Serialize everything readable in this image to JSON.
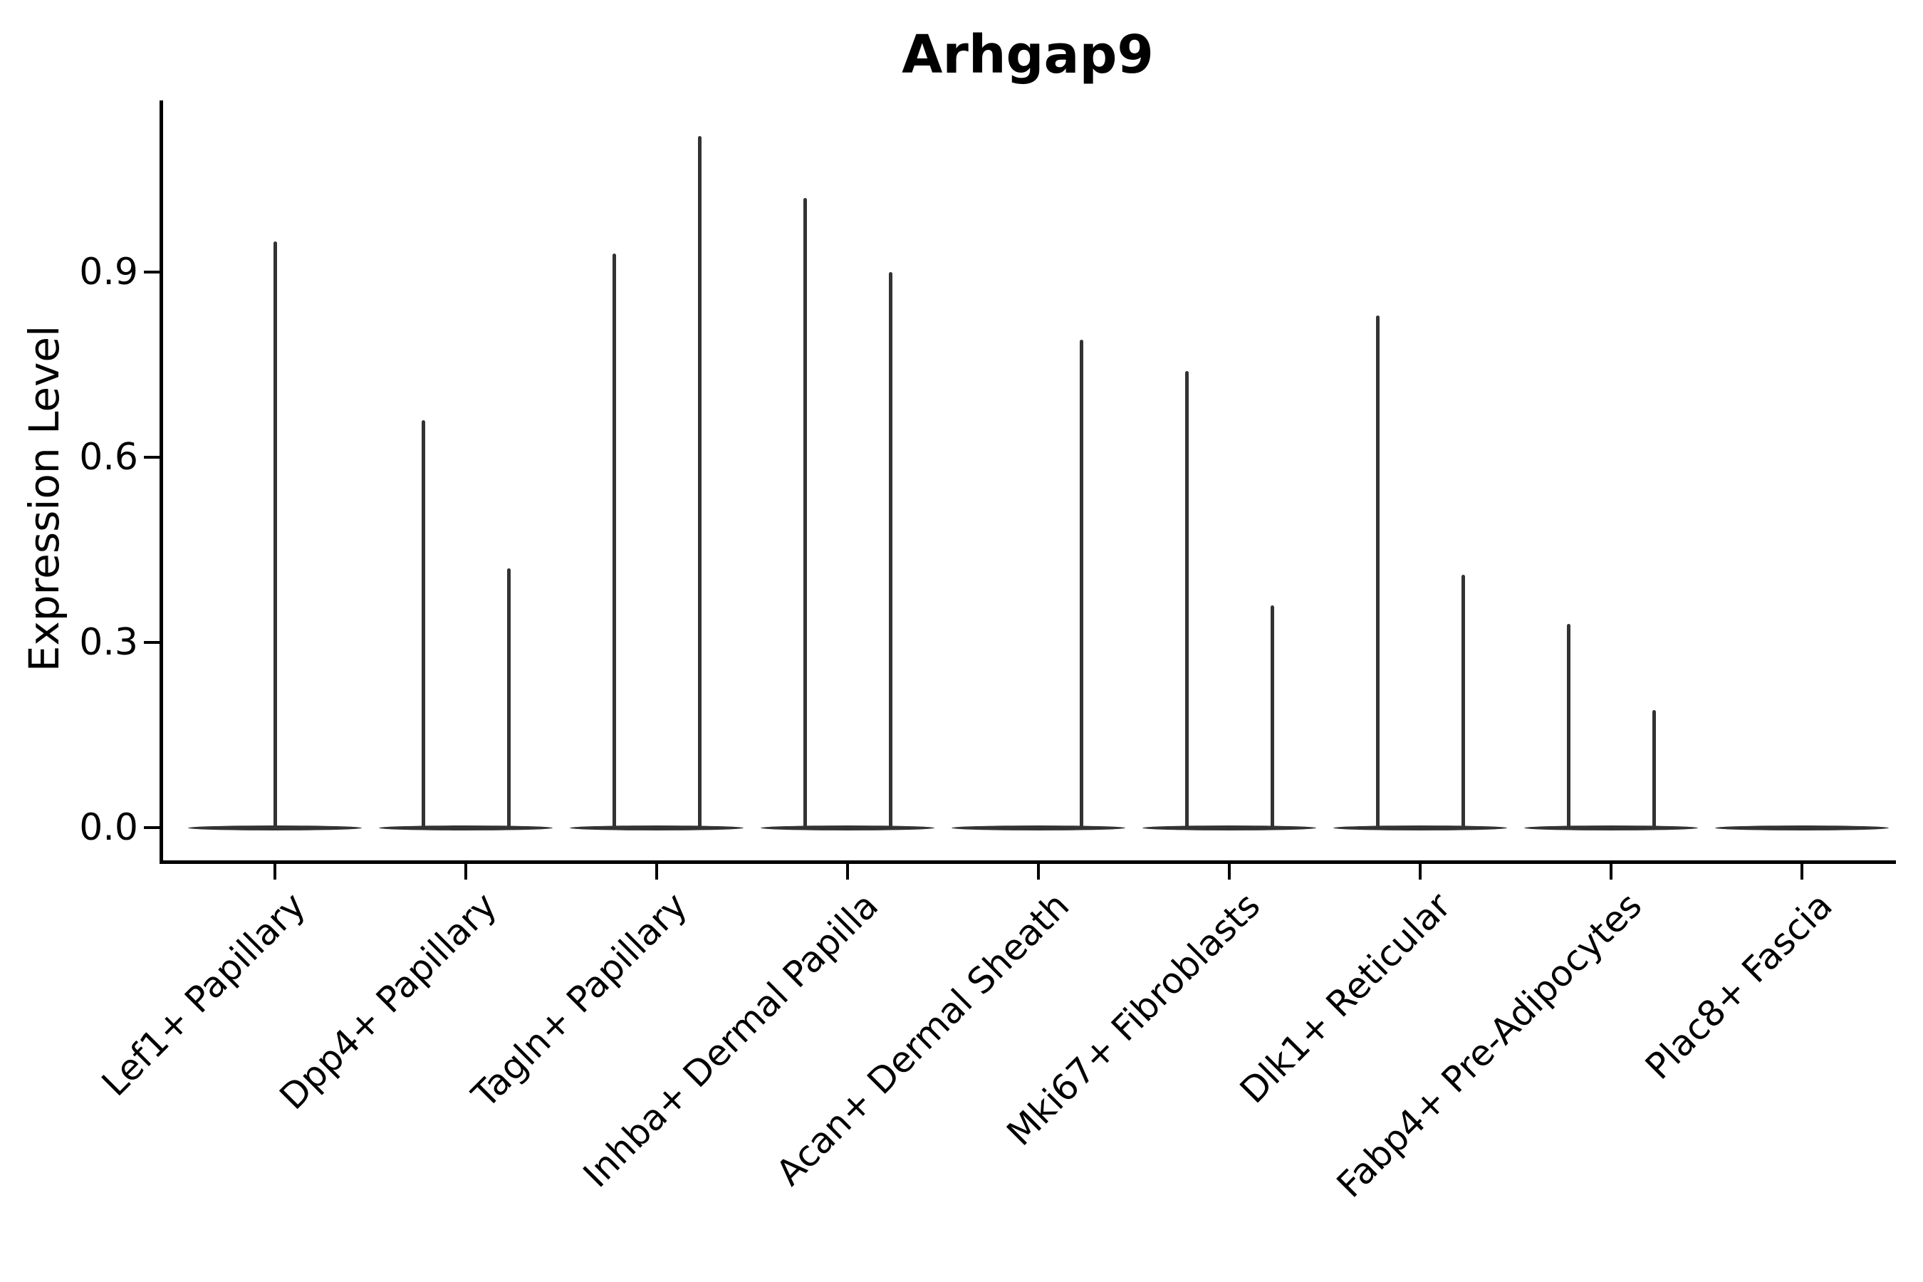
{
  "chart_data": {
    "type": "violin",
    "title": "Arhgap9",
    "ylabel": "Expression Level",
    "xlabel": "",
    "ylim": [
      0,
      1.18
    ],
    "yticks": [
      0.0,
      0.3,
      0.6,
      0.9
    ],
    "grid": false,
    "legend": "none",
    "categories": [
      "Lef1+ Papillary",
      "Dpp4+ Papillary",
      "Tagln+ Papillary",
      "Inhba+ Dermal Papilla",
      "Acan+ Dermal Sheath",
      "Mki67+ Fibroblasts",
      "Dlk1+ Reticular",
      "Fabp4+ Pre-Adipocytes",
      "Plac8+ Fascia"
    ],
    "violins": [
      {
        "category": "Lef1+ Papillary",
        "spikes": [
          {
            "position": "center",
            "peak": 0.95
          }
        ]
      },
      {
        "category": "Dpp4+ Papillary",
        "spikes": [
          {
            "position": "left",
            "peak": 0.66
          },
          {
            "position": "right",
            "peak": 0.42
          }
        ]
      },
      {
        "category": "Tagln+ Papillary",
        "spikes": [
          {
            "position": "left",
            "peak": 0.93
          },
          {
            "position": "right",
            "peak": 1.12
          }
        ]
      },
      {
        "category": "Inhba+ Dermal Papilla",
        "spikes": [
          {
            "position": "left",
            "peak": 1.02
          },
          {
            "position": "right",
            "peak": 0.9
          }
        ]
      },
      {
        "category": "Acan+ Dermal Sheath",
        "spikes": [
          {
            "position": "right",
            "peak": 0.79
          }
        ]
      },
      {
        "category": "Mki67+ Fibroblasts",
        "spikes": [
          {
            "position": "left",
            "peak": 0.74
          },
          {
            "position": "right",
            "peak": 0.36
          }
        ]
      },
      {
        "category": "Dlk1+ Reticular",
        "spikes": [
          {
            "position": "left",
            "peak": 0.83
          },
          {
            "position": "right",
            "peak": 0.41
          }
        ]
      },
      {
        "category": "Fabp4+ Pre-Adipocytes",
        "spikes": [
          {
            "position": "left",
            "peak": 0.33
          },
          {
            "position": "right",
            "peak": 0.19
          }
        ]
      },
      {
        "category": "Plac8+ Fascia",
        "spikes": []
      }
    ],
    "colors": {
      "violin": "#333333",
      "axis": "#000000",
      "text": "#000000",
      "background": "#ffffff"
    }
  }
}
